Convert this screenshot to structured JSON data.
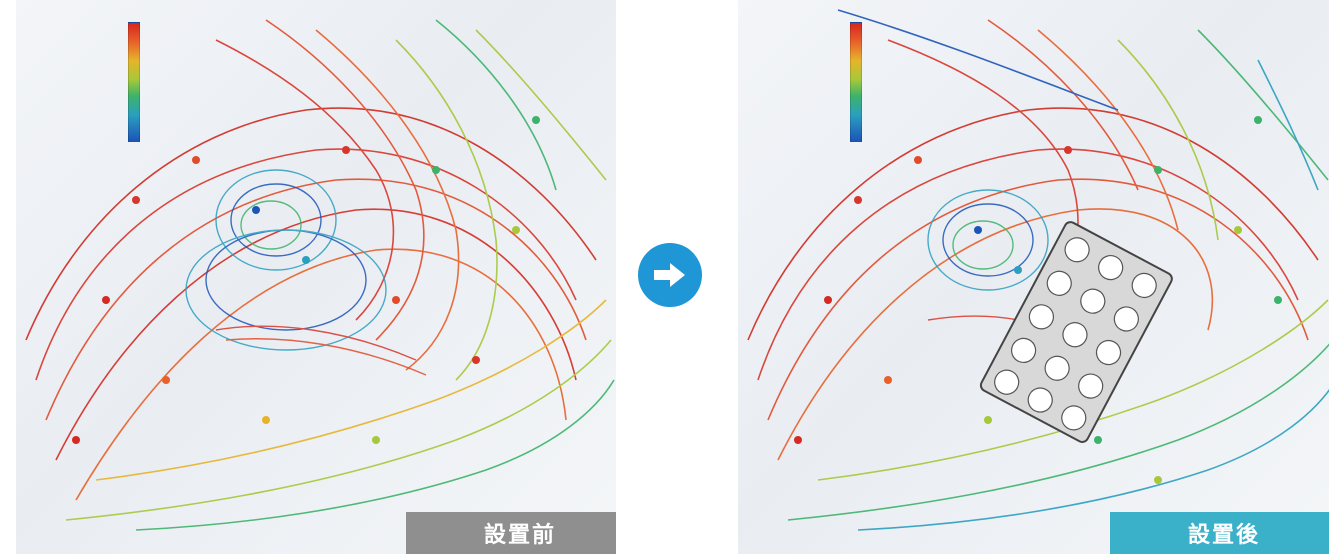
{
  "panels": {
    "before": {
      "label": "設置前",
      "label_color": "#8f8f8f"
    },
    "after": {
      "label": "設置後",
      "label_color": "#3bb0c9"
    }
  },
  "legend": {
    "colors": [
      "#d7261e",
      "#e8612a",
      "#e6b42a",
      "#a6c83a",
      "#3cb36a",
      "#2a9fc0",
      "#1c55b8"
    ]
  },
  "arrow": {
    "icon": "arrow-right-icon",
    "color": "#1f97d6"
  }
}
